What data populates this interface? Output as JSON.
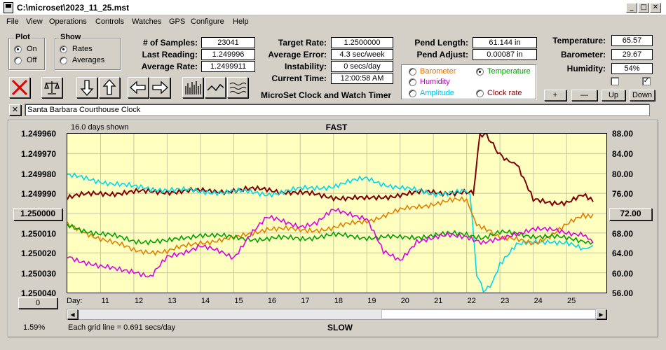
{
  "window": {
    "title": "C:\\microset\\2023_11_25.mst"
  },
  "menu": [
    "File",
    "View",
    "Operations",
    "Controls",
    "Watches",
    "GPS",
    "Configure",
    "Help"
  ],
  "plot_group": {
    "label": "Plot",
    "options": [
      "On",
      "Off"
    ],
    "selected": "On"
  },
  "show_group": {
    "label": "Show",
    "options": [
      "Rates",
      "Averages"
    ],
    "selected": "Rates"
  },
  "stats1": [
    {
      "label": "# of Samples:",
      "value": "23041"
    },
    {
      "label": "Last Reading:",
      "value": "1.249996"
    },
    {
      "label": "Average Rate:",
      "value": "1.2499911"
    }
  ],
  "stats2": [
    {
      "label": "Target Rate:",
      "value": "1.2500000"
    },
    {
      "label": "Average Error:",
      "value": "4.3 sec/week"
    },
    {
      "label": "Instability:",
      "value": "0 secs/day"
    },
    {
      "label": "Current Time:",
      "value": "12:00:58 AM"
    }
  ],
  "app_caption": "MicroSet Clock and Watch Timer",
  "stats3": [
    {
      "label": "Pend Length:",
      "value": "61.144 in"
    },
    {
      "label": "Pend Adjust:",
      "value": "0.00087 in"
    }
  ],
  "sensor_options": [
    {
      "label": "Barometer",
      "color": "#e07000",
      "selected": false
    },
    {
      "label": "Temperature",
      "color": "#00a000",
      "selected": true
    },
    {
      "label": "Humidity",
      "color": "#c000c0",
      "selected": false
    },
    {
      "label": "Amplitude",
      "color": "#00c0e0",
      "selected": false
    },
    {
      "label": "Clock rate",
      "color": "#800000",
      "selected": false
    }
  ],
  "env": [
    {
      "label": "Temperature:",
      "value": "65.57"
    },
    {
      "label": "Barometer:",
      "value": "29.67"
    },
    {
      "label": "Humidity:",
      "value": "54%"
    }
  ],
  "checkboxes": [
    false,
    true
  ],
  "adjust_buttons": [
    "+",
    "—",
    "Up",
    "Down"
  ],
  "clock_name": "Santa Barbara Courthouse Clock",
  "chart": {
    "days_shown": "16.0 days shown",
    "top_label": "FAST",
    "bottom_label": "SLOW",
    "grid_note": "Each grid line = 0.691 secs/day",
    "percent": "1.59%",
    "center_button": "1.250000",
    "right_button": "72.00",
    "zero_button": "0",
    "day_label": "Day:"
  },
  "chart_data": {
    "type": "line",
    "left_axis_ticks": [
      "1.249960",
      "1.249970",
      "1.249980",
      "1.249990",
      "1.250010",
      "1.250020",
      "1.250030",
      "1.250040"
    ],
    "right_axis_ticks": [
      "88.00",
      "84.00",
      "80.00",
      "76.00",
      "68.00",
      "64.00",
      "60.00",
      "56.00"
    ],
    "x_ticks": [
      "11",
      "12",
      "13",
      "14",
      "15",
      "16",
      "17",
      "18",
      "19",
      "20",
      "21",
      "22",
      "23",
      "24",
      "25"
    ],
    "left_range": [
      1.24996,
      1.25004
    ],
    "right_range": [
      56,
      88
    ],
    "x_range": [
      10,
      26.2
    ],
    "series": [
      {
        "color": "#800000",
        "x": [
          10,
          11,
          12,
          13,
          14,
          15,
          16,
          17,
          18,
          19,
          20,
          21,
          22,
          22.2,
          22.4,
          22.6,
          22.8,
          23,
          23.2,
          23.5,
          24,
          24.5,
          25,
          25.5,
          25.8
        ],
        "y": [
          75.2,
          76.0,
          76.2,
          76.4,
          76.4,
          76.6,
          76.8,
          76.0,
          75.3,
          74.8,
          75.8,
          76.2,
          76.2,
          76.0,
          88.0,
          88.0,
          86.0,
          84.0,
          83.0,
          82.0,
          74.5,
          74.2,
          74.3,
          75.5,
          74.3
        ]
      },
      {
        "color": "#00d8e8",
        "x": [
          10,
          11,
          12,
          13,
          14,
          15,
          16,
          17,
          18,
          19,
          20,
          21,
          22,
          22.1,
          22.3,
          22.5,
          22.7,
          23,
          23.5,
          24,
          24.5,
          25,
          25.5,
          25.8
        ],
        "y": [
          79.5,
          78.5,
          77.2,
          76.8,
          76.3,
          76.4,
          75.9,
          76.8,
          77.5,
          79.0,
          77.0,
          76.0,
          76.3,
          76.5,
          60.0,
          56.5,
          57.0,
          62.0,
          65.5,
          66.0,
          66.5,
          66.0,
          64.5,
          65.5
        ]
      },
      {
        "color": "#e08000",
        "x": [
          10,
          11,
          12,
          13,
          14,
          15,
          16,
          17,
          18,
          19,
          20,
          21,
          21.5,
          22,
          22.3,
          22.6,
          23,
          23.5,
          24,
          24.5,
          25,
          25.5,
          25.8
        ],
        "y": [
          69.5,
          67.0,
          64.5,
          64.2,
          66.2,
          66.8,
          69.0,
          68.5,
          69.0,
          70.5,
          72.5,
          74.0,
          74.5,
          74.5,
          70.0,
          68.5,
          67.0,
          66.5,
          66.0,
          67.5,
          69.5,
          71.5,
          71.8
        ]
      },
      {
        "color": "#00a000",
        "x": [
          10,
          11,
          12,
          13,
          14,
          15,
          16,
          17,
          18,
          19,
          20,
          21,
          22,
          22.5,
          23,
          23.5,
          24,
          24.5,
          25,
          25.5,
          25.8
        ],
        "y": [
          69.5,
          67.8,
          66.5,
          66.2,
          67.8,
          67.0,
          66.8,
          67.0,
          67.5,
          67.2,
          67.0,
          67.6,
          67.8,
          67.2,
          68.0,
          67.8,
          67.5,
          67.3,
          66.8,
          66.5,
          66.2
        ]
      },
      {
        "color": "#e000e0",
        "x": [
          10,
          11,
          12,
          12.5,
          13,
          14,
          15,
          15.5,
          16,
          17,
          17.5,
          18,
          18.5,
          19,
          19.5,
          20,
          20.5,
          21,
          21.5,
          22,
          22.5,
          23,
          23.5,
          24,
          24.5,
          25,
          25.5,
          25.8
        ],
        "y": [
          63.5,
          61.0,
          60.5,
          59.0,
          63.0,
          65.5,
          63.0,
          68.0,
          71.0,
          69.5,
          70.0,
          72.5,
          72.0,
          71.0,
          64.0,
          62.5,
          66.5,
          66.8,
          67.5,
          67.5,
          66.0,
          66.5,
          68.0,
          69.0,
          68.5,
          68.0,
          68.0,
          66.0
        ]
      }
    ]
  }
}
